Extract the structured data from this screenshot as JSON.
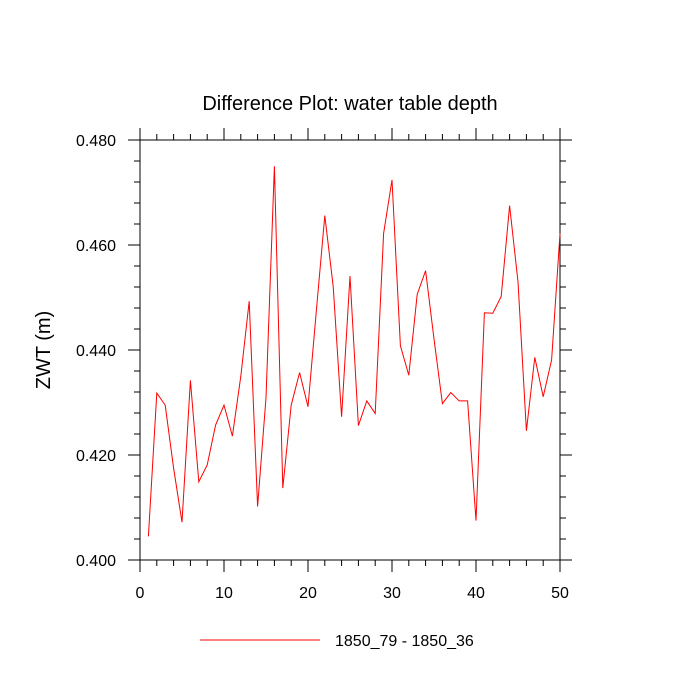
{
  "chart_data": {
    "type": "line",
    "title": "Difference Plot: water table depth",
    "xlabel": "",
    "ylabel": "ZWT  (m)",
    "xlim": [
      0,
      50
    ],
    "ylim": [
      0.4,
      0.48
    ],
    "x_ticks": [
      "0",
      "10",
      "20",
      "30",
      "40",
      "50"
    ],
    "y_ticks": [
      "0.400",
      "0.420",
      "0.440",
      "0.460",
      "0.480"
    ],
    "grid": false,
    "legend_position": "bottom",
    "series": [
      {
        "name": "1850_79 - 1850_36",
        "color": "#ff0000",
        "x": [
          1,
          2,
          3,
          4,
          5,
          6,
          7,
          8,
          9,
          10,
          11,
          12,
          13,
          14,
          15,
          16,
          17,
          18,
          19,
          20,
          21,
          22,
          23,
          24,
          25,
          26,
          27,
          28,
          29,
          30,
          31,
          32,
          33,
          34,
          35,
          36,
          37,
          38,
          39,
          40,
          41,
          42,
          43,
          44,
          45,
          46,
          47,
          48,
          49,
          50
        ],
        "y": [
          0.4045,
          0.4318,
          0.4295,
          0.4175,
          0.4072,
          0.4342,
          0.4149,
          0.4181,
          0.4257,
          0.4295,
          0.4236,
          0.435,
          0.4493,
          0.4102,
          0.4309,
          0.475,
          0.4137,
          0.4295,
          0.4357,
          0.4292,
          0.4476,
          0.4656,
          0.4521,
          0.4273,
          0.4541,
          0.4256,
          0.4303,
          0.4279,
          0.4622,
          0.4724,
          0.4408,
          0.4352,
          0.4506,
          0.4551,
          0.4421,
          0.4298,
          0.4319,
          0.4303,
          0.4303,
          0.4075,
          0.4471,
          0.447,
          0.4502,
          0.4675,
          0.453,
          0.4246,
          0.4386,
          0.4311,
          0.4381,
          0.4622
        ]
      }
    ]
  }
}
